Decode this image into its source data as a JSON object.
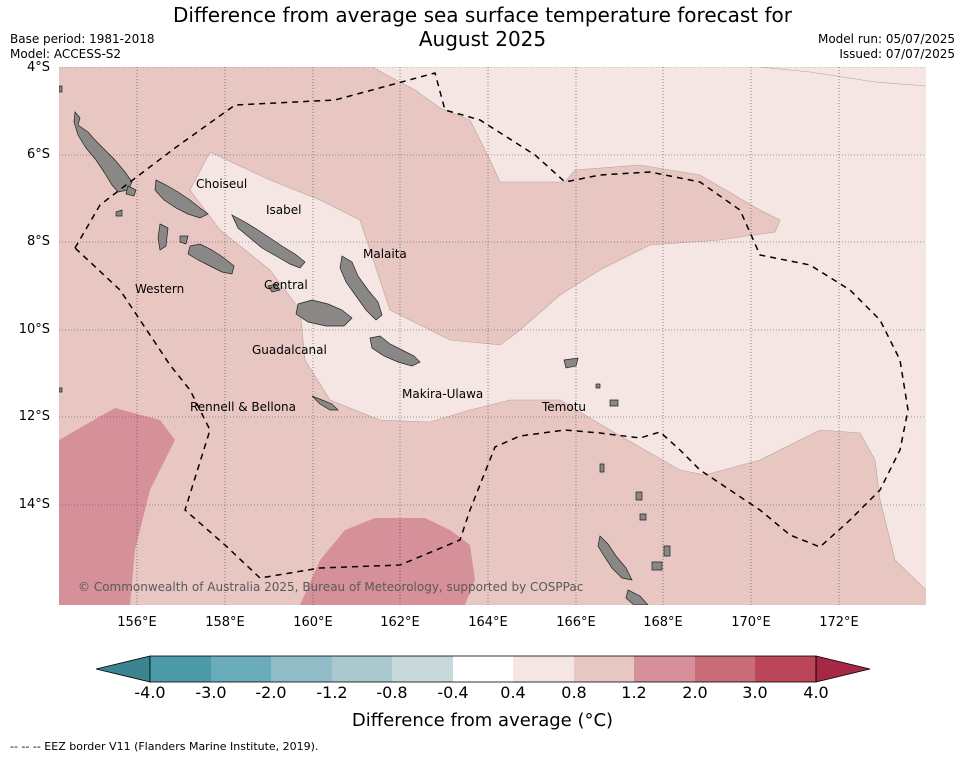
{
  "title_line1": "Difference from average sea surface temperature forecast for",
  "title_line2": "August 2025",
  "base_period": "Base period: 1981-2018",
  "model": "Model: ACCESS-S2",
  "model_run": "Model run: 05/07/2025",
  "issued": "Issued: 07/07/2025",
  "lat_labels": [
    "4°S",
    "6°S",
    "8°S",
    "10°S",
    "12°S",
    "14°S"
  ],
  "lon_labels": [
    "156°E",
    "158°E",
    "160°E",
    "162°E",
    "164°E",
    "166°E",
    "168°E",
    "170°E",
    "172°E"
  ],
  "places": {
    "choiseul": "Choiseul",
    "isabel": "Isabel",
    "malaita": "Malaita",
    "western": "Western",
    "central": "Central",
    "guadalcanal": "Guadalcanal",
    "makira": "Makira-Ulawa",
    "temotu": "Temotu",
    "rennell": "Rennell & Bellona"
  },
  "copyright": "© Commonwealth of Australia 2025, Bureau of Meteorology, supported by COSPPac",
  "colorbar": {
    "labels": [
      "-4.0",
      "-3.0",
      "-2.0",
      "-1.2",
      "-0.8",
      "-0.4",
      "0.4",
      "0.8",
      "1.2",
      "2.0",
      "3.0",
      "4.0"
    ],
    "colors": [
      "#4a9aa8",
      "#6aacb9",
      "#8fbcc6",
      "#a9c9ce",
      "#c8d9dc",
      "#ffffff",
      "#f5e6e4",
      "#e8c7c3",
      "#d6909a",
      "#c86c78",
      "#bb4658"
    ],
    "under_color": "#3b8591",
    "over_color": "#a72844",
    "title": "Difference from average ($^\\circ$C)",
    "title_display": "Difference from average (°C)"
  },
  "eez_note": "--  --  -- EEZ border V11 (Flanders Marine Institute, 2019)."
}
